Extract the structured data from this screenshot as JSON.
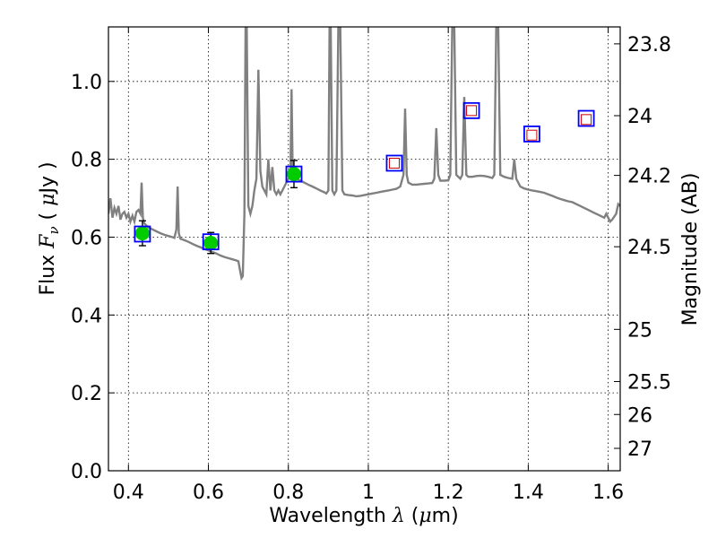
{
  "chart_data": {
    "type": "line",
    "xlabel_prefix": "Wavelength  ",
    "xlabel_symbol": "λ",
    "xlabel_unit_open": " (",
    "xlabel_unit_mu": "μ",
    "xlabel_unit_rest": "m)",
    "ylabel_prefix": "Flux  ",
    "ylabel_symbol": "F",
    "ylabel_subscript": "ν",
    "ylabel_unit_open": "  ( ",
    "ylabel_unit_mu": "μ",
    "ylabel_unit_rest": "Jy )",
    "y2label": "Magnitude (AB)",
    "xlim": [
      0.35,
      1.63
    ],
    "ylim": [
      0.0,
      1.14
    ],
    "grid": true,
    "x_ticks": [
      0.4,
      0.6,
      0.8,
      1.0,
      1.2,
      1.4,
      1.6
    ],
    "x_tick_labels": [
      "0.4",
      "0.6",
      "0.8",
      "1",
      "1.2",
      "1.4",
      "1.6"
    ],
    "y_ticks": [
      0.0,
      0.2,
      0.4,
      0.6,
      0.8,
      1.0
    ],
    "y_tick_labels": [
      "0.0",
      "0.2",
      "0.4",
      "0.6",
      "0.8",
      "1.0"
    ],
    "y2_ticks": [
      {
        "label": "23.8",
        "flux": 1.0965
      },
      {
        "label": "24",
        "flux": 0.912
      },
      {
        "label": "24.2",
        "flux": 0.7586
      },
      {
        "label": "24.5",
        "flux": 0.5754
      },
      {
        "label": "25",
        "flux": 0.3631
      },
      {
        "label": "25.5",
        "flux": 0.2291
      },
      {
        "label": "26",
        "flux": 0.1445
      },
      {
        "label": "27",
        "flux": 0.0575
      }
    ],
    "series": [
      {
        "kind": "model_spectrum",
        "color": "#808080",
        "points": [
          [
            0.35,
            0.66
          ],
          [
            0.355,
            0.7
          ],
          [
            0.36,
            0.65
          ],
          [
            0.365,
            0.675
          ],
          [
            0.37,
            0.66
          ],
          [
            0.375,
            0.68
          ],
          [
            0.38,
            0.645
          ],
          [
            0.385,
            0.66
          ],
          [
            0.39,
            0.665
          ],
          [
            0.395,
            0.65
          ],
          [
            0.4,
            0.66
          ],
          [
            0.405,
            0.64
          ],
          [
            0.41,
            0.655
          ],
          [
            0.415,
            0.64
          ],
          [
            0.42,
            0.665
          ],
          [
            0.425,
            0.67
          ],
          [
            0.43,
            0.66
          ],
          [
            0.433,
            0.74
          ],
          [
            0.436,
            0.65
          ],
          [
            0.44,
            0.635
          ],
          [
            0.45,
            0.625
          ],
          [
            0.46,
            0.62
          ],
          [
            0.47,
            0.615
          ],
          [
            0.48,
            0.61
          ],
          [
            0.49,
            0.606
          ],
          [
            0.5,
            0.603
          ],
          [
            0.51,
            0.6
          ],
          [
            0.515,
            0.598
          ],
          [
            0.52,
            0.62
          ],
          [
            0.523,
            0.73
          ],
          [
            0.526,
            0.61
          ],
          [
            0.53,
            0.596
          ],
          [
            0.54,
            0.592
          ],
          [
            0.55,
            0.588
          ],
          [
            0.56,
            0.583
          ],
          [
            0.57,
            0.578
          ],
          [
            0.58,
            0.574
          ],
          [
            0.59,
            0.57
          ],
          [
            0.6,
            0.566
          ],
          [
            0.61,
            0.562
          ],
          [
            0.62,
            0.558
          ],
          [
            0.63,
            0.553
          ],
          [
            0.64,
            0.549
          ],
          [
            0.65,
            0.546
          ],
          [
            0.66,
            0.543
          ],
          [
            0.67,
            0.54
          ],
          [
            0.675,
            0.538
          ],
          [
            0.68,
            0.51
          ],
          [
            0.683,
            0.495
          ],
          [
            0.686,
            0.5
          ],
          [
            0.69,
            0.66
          ],
          [
            0.693,
            1.14
          ],
          [
            0.696,
            1.14
          ],
          [
            0.7,
            0.68
          ],
          [
            0.705,
            0.66
          ],
          [
            0.71,
            0.68
          ],
          [
            0.715,
            0.72
          ],
          [
            0.72,
            0.75
          ],
          [
            0.725,
            1.03
          ],
          [
            0.73,
            0.77
          ],
          [
            0.735,
            0.73
          ],
          [
            0.74,
            0.72
          ],
          [
            0.745,
            0.71
          ],
          [
            0.75,
            0.8
          ],
          [
            0.755,
            0.72
          ],
          [
            0.76,
            0.78
          ],
          [
            0.765,
            0.72
          ],
          [
            0.77,
            0.71
          ],
          [
            0.775,
            0.72
          ],
          [
            0.78,
            0.71
          ],
          [
            0.785,
            0.72
          ],
          [
            0.79,
            0.73
          ],
          [
            0.795,
            0.74
          ],
          [
            0.8,
            0.75
          ],
          [
            0.805,
            0.76
          ],
          [
            0.808,
            0.98
          ],
          [
            0.811,
            0.76
          ],
          [
            0.815,
            0.75
          ],
          [
            0.82,
            0.75
          ],
          [
            0.83,
            0.745
          ],
          [
            0.84,
            0.74
          ],
          [
            0.85,
            0.735
          ],
          [
            0.86,
            0.73
          ],
          [
            0.87,
            0.725
          ],
          [
            0.88,
            0.72
          ],
          [
            0.89,
            0.715
          ],
          [
            0.895,
            0.712
          ],
          [
            0.9,
            0.72
          ],
          [
            0.903,
            1.14
          ],
          [
            0.906,
            1.14
          ],
          [
            0.91,
            0.72
          ],
          [
            0.915,
            0.71
          ],
          [
            0.92,
            0.72
          ],
          [
            0.925,
            1.14
          ],
          [
            0.93,
            1.14
          ],
          [
            0.935,
            0.72
          ],
          [
            0.94,
            0.71
          ],
          [
            0.95,
            0.708
          ],
          [
            0.96,
            0.707
          ],
          [
            0.97,
            0.705
          ],
          [
            0.98,
            0.706
          ],
          [
            0.99,
            0.708
          ],
          [
            1.0,
            0.71
          ],
          [
            1.01,
            0.712
          ],
          [
            1.02,
            0.714
          ],
          [
            1.03,
            0.716
          ],
          [
            1.04,
            0.718
          ],
          [
            1.05,
            0.72
          ],
          [
            1.06,
            0.722
          ],
          [
            1.07,
            0.724
          ],
          [
            1.08,
            0.73
          ],
          [
            1.088,
            0.76
          ],
          [
            1.092,
            0.93
          ],
          [
            1.096,
            0.76
          ],
          [
            1.1,
            0.74
          ],
          [
            1.11,
            0.735
          ],
          [
            1.12,
            0.735
          ],
          [
            1.13,
            0.736
          ],
          [
            1.14,
            0.737
          ],
          [
            1.15,
            0.738
          ],
          [
            1.16,
            0.739
          ],
          [
            1.165,
            0.75
          ],
          [
            1.17,
            0.88
          ],
          [
            1.175,
            0.76
          ],
          [
            1.18,
            0.745
          ],
          [
            1.19,
            0.745
          ],
          [
            1.2,
            0.746
          ],
          [
            1.205,
            0.76
          ],
          [
            1.21,
            1.14
          ],
          [
            1.215,
            1.14
          ],
          [
            1.22,
            0.76
          ],
          [
            1.23,
            0.75
          ],
          [
            1.235,
            0.76
          ],
          [
            1.24,
            0.96
          ],
          [
            1.245,
            0.76
          ],
          [
            1.25,
            0.755
          ],
          [
            1.26,
            0.755
          ],
          [
            1.27,
            0.757
          ],
          [
            1.28,
            0.758
          ],
          [
            1.29,
            0.757
          ],
          [
            1.3,
            0.755
          ],
          [
            1.31,
            0.752
          ],
          [
            1.315,
            0.76
          ],
          [
            1.32,
            1.14
          ],
          [
            1.325,
            1.14
          ],
          [
            1.33,
            0.76
          ],
          [
            1.34,
            0.755
          ],
          [
            1.35,
            0.752
          ],
          [
            1.36,
            0.75
          ],
          [
            1.365,
            0.8
          ],
          [
            1.37,
            0.75
          ],
          [
            1.38,
            0.73
          ],
          [
            1.39,
            0.725
          ],
          [
            1.4,
            0.722
          ],
          [
            1.41,
            0.72
          ],
          [
            1.42,
            0.718
          ],
          [
            1.43,
            0.716
          ],
          [
            1.44,
            0.714
          ],
          [
            1.45,
            0.71
          ],
          [
            1.46,
            0.706
          ],
          [
            1.47,
            0.702
          ],
          [
            1.48,
            0.698
          ],
          [
            1.49,
            0.695
          ],
          [
            1.5,
            0.692
          ],
          [
            1.51,
            0.69
          ],
          [
            1.52,
            0.685
          ],
          [
            1.53,
            0.68
          ],
          [
            1.54,
            0.675
          ],
          [
            1.55,
            0.67
          ],
          [
            1.56,
            0.665
          ],
          [
            1.57,
            0.66
          ],
          [
            1.58,
            0.655
          ],
          [
            1.59,
            0.65
          ],
          [
            1.595,
            0.66
          ],
          [
            1.6,
            0.65
          ],
          [
            1.605,
            0.64
          ],
          [
            1.61,
            0.645
          ],
          [
            1.62,
            0.66
          ],
          [
            1.625,
            0.685
          ],
          [
            1.63,
            0.68
          ]
        ]
      },
      {
        "kind": "model_photometry",
        "marker": "square",
        "color": "#0000ff",
        "points": [
          [
            0.435,
            0.608
          ],
          [
            0.606,
            0.588
          ],
          [
            0.814,
            0.762
          ],
          [
            1.065,
            0.79
          ],
          [
            1.258,
            0.925
          ],
          [
            1.409,
            0.865
          ],
          [
            1.545,
            0.905
          ]
        ]
      },
      {
        "kind": "observed_photometry",
        "marker": "circle",
        "color": "#00cc00",
        "points": [
          [
            0.435,
            0.61,
            0.032
          ],
          [
            0.606,
            0.585,
            0.027
          ],
          [
            0.814,
            0.762,
            0.035
          ]
        ]
      },
      {
        "kind": "upper_limits",
        "marker": "square",
        "color": "#cc0000",
        "points": [
          [
            1.065,
            0.79
          ],
          [
            1.258,
            0.925
          ],
          [
            1.409,
            0.862
          ],
          [
            1.545,
            0.902
          ]
        ]
      }
    ]
  }
}
